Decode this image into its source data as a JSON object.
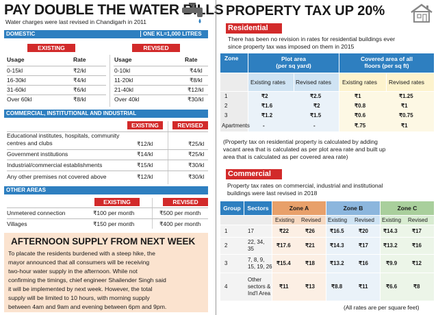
{
  "left": {
    "title": "PAY DOUBLE THE WATER BILLS",
    "subtitle": "Water charges were last revised in Chandigarh in 2011",
    "domestic": {
      "label": "DOMESTIC",
      "unit_note": "ONE KL=1,000 LITRES",
      "existing_label": "EXISTING",
      "revised_label": "REVISED",
      "col_usage": "Usage",
      "col_rate": "Rate",
      "existing_rows": [
        {
          "usage": "0-15kl",
          "rate": "₹2/kl"
        },
        {
          "usage": "16-30kl",
          "rate": "₹4/kl"
        },
        {
          "usage": "31-60kl",
          "rate": "₹6/kl"
        },
        {
          "usage": "Over 60kl",
          "rate": "₹8/kl"
        }
      ],
      "revised_rows": [
        {
          "usage": "0-10kl",
          "rate": "₹4/kl"
        },
        {
          "usage": "11-20kl",
          "rate": "₹8/kl"
        },
        {
          "usage": "21-40kl",
          "rate": "₹12/kl"
        },
        {
          "usage": "Over 40kl",
          "rate": "₹30/kl"
        }
      ]
    },
    "commercial": {
      "label": "COMMERCIAL, INSTITUTIONAL AND INDUSTRIAL",
      "existing_label": "EXISTING",
      "revised_label": "REVISED",
      "rows": [
        {
          "name": "Educational institutes, hospitals, community centres and clubs",
          "existing": "₹12/kl",
          "revised": "₹25/kl"
        },
        {
          "name": "Government institutions",
          "existing": "₹14/kl",
          "revised": "₹25/kl"
        },
        {
          "name": "Industrial/commercial establishments",
          "existing": "₹15/kl",
          "revised": "₹30/kl"
        },
        {
          "name": "Any other premises not covered above",
          "existing": "₹12/kl",
          "revised": "₹30/kl"
        }
      ]
    },
    "other": {
      "label": "OTHER AREAS",
      "existing_label": "EXISTING",
      "revised_label": "REVISED",
      "rows": [
        {
          "name": "Unmetered connection",
          "existing": "₹100 per month",
          "revised": "₹500 per month"
        },
        {
          "name": "Villages",
          "existing": "₹150 per month",
          "revised": "₹400 per month"
        }
      ]
    },
    "afternoon": {
      "title": "AFTERNOON SUPPLY FROM NEXT WEEK",
      "lines": [
        "To placate the residents burdened with a steep hike, the",
        "mayor announced that all consumers will be receiving",
        "two-hour water supply in the afternoon. While not",
        "confirming the timings, chief engineer Shailender Singh said",
        "it will be implemented by next week. However, the total",
        "supply will be limited to 10 hours, with morning supply",
        "between 4am and 9am and evening between 6pm and 9pm."
      ]
    }
  },
  "right": {
    "title": "PROPERTY TAX UP 20%",
    "residential": {
      "label": "Residential",
      "intro_lines": [
        "There has been no revision in rates for residential buildings ever",
        "since property tax was imposed on them in 2015"
      ],
      "col_zone": "Zone",
      "plot_area": "Plot area",
      "plot_unit": "(per sq yard)",
      "covered_area": "Covered area of all",
      "covered_unit": "floors (per sq ft)",
      "existing_rates": "Existing rates",
      "revised_rates": "Revised rates",
      "rows": [
        {
          "zone": "1",
          "plot_existing": "₹2",
          "plot_revised": "₹2.5",
          "cov_existing": "₹1",
          "cov_revised": "₹1.25"
        },
        {
          "zone": "2",
          "plot_existing": "₹1.6",
          "plot_revised": "₹2",
          "cov_existing": "₹0.8",
          "cov_revised": "₹1"
        },
        {
          "zone": "3",
          "plot_existing": "₹1.2",
          "plot_revised": "₹1.5",
          "cov_existing": "₹0.6",
          "cov_revised": "₹0.75"
        },
        {
          "zone": "Apartments",
          "plot_existing": "-",
          "plot_revised": "-",
          "cov_existing": "₹.75",
          "cov_revised": "₹1"
        }
      ],
      "note_lines": [
        "(Property tax on residential property is calculated by adding",
        "vacant area that is calculated as per plot area rate and built up",
        "area that is calculated as per covered area rate)"
      ]
    },
    "commercial": {
      "label": "Commercial",
      "intro_lines": [
        "Property tax rates on commercial, industrial and institutional",
        "buildings were last revised in 2018"
      ],
      "col_group": "Group",
      "col_sectors": "Sectors",
      "zone_a": "Zone A",
      "zone_b": "Zone B",
      "zone_c": "Zone C",
      "existing": "Existing",
      "revised": "Revised",
      "rows": [
        {
          "group": "1",
          "sectors": [
            "17"
          ],
          "a_e": "₹22",
          "a_r": "₹26",
          "b_e": "₹16.5",
          "b_r": "₹20",
          "c_e": "₹14.3",
          "c_r": "₹17"
        },
        {
          "group": "2",
          "sectors": [
            "22, 34,",
            "35"
          ],
          "a_e": "₹17.6",
          "a_r": "₹21",
          "b_e": "₹14.3",
          "b_r": "₹17",
          "c_e": "₹13.2",
          "c_r": "₹16"
        },
        {
          "group": "3",
          "sectors": [
            "7, 8, 9,",
            "15, 19, 26"
          ],
          "a_e": "₹15.4",
          "a_r": "₹18",
          "b_e": "₹13.2",
          "b_r": "₹16",
          "c_e": "₹9.9",
          "c_r": "₹12"
        },
        {
          "group": "4",
          "sectors": [
            "Other",
            "sectors &",
            "Ind'l Area"
          ],
          "a_e": "₹11",
          "a_r": "₹13",
          "b_e": "₹8.8",
          "b_r": "₹11",
          "c_e": "₹6.6",
          "c_r": "₹8"
        }
      ],
      "footnote": "(All rates are per square feet)"
    }
  },
  "colors": {
    "blue": "#2e7fc0",
    "red": "#d22a2a",
    "peach": "#fbe3cf"
  },
  "icons": [
    "tap-icon",
    "house-icon"
  ]
}
